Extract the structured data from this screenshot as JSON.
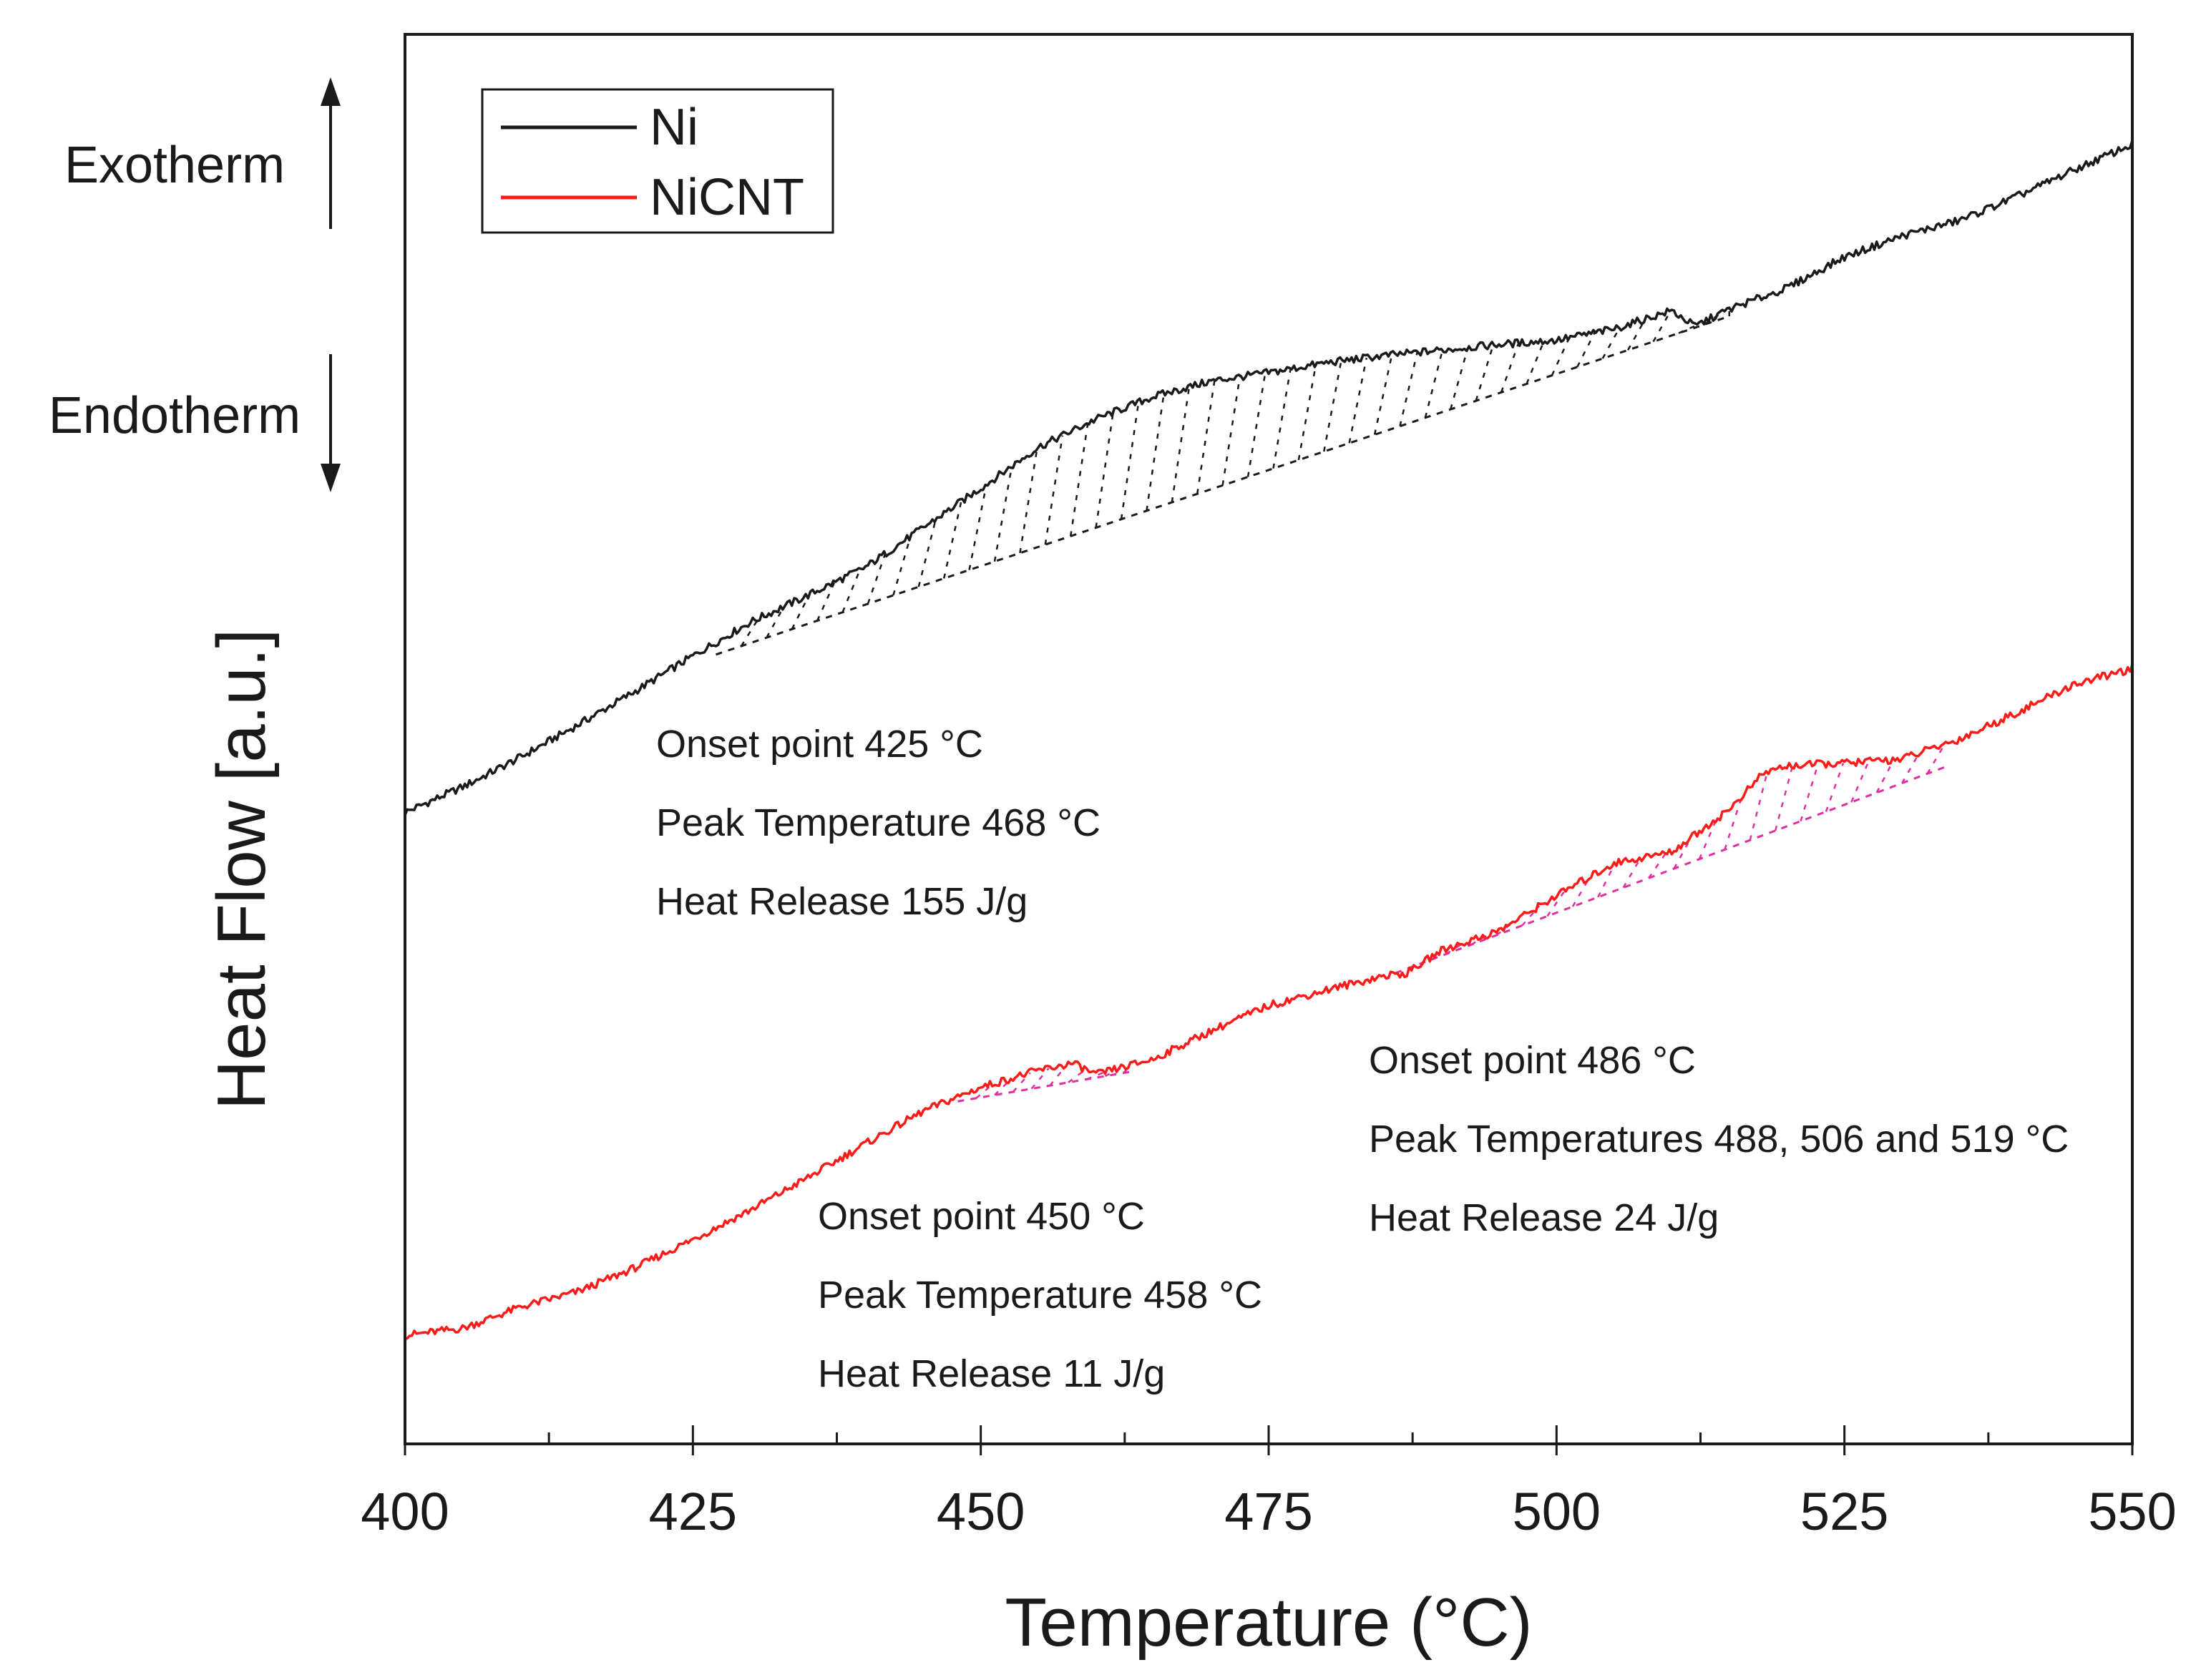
{
  "chart_data": {
    "type": "line",
    "xlabel": "Temperature (°C)",
    "ylabel": "Heat Flow [a.u.]",
    "xlim": [
      400,
      550
    ],
    "ylim": [
      0,
      100
    ],
    "xticks": [
      400,
      425,
      450,
      475,
      500,
      525,
      550
    ],
    "xtick_labels": [
      "400",
      "425",
      "450",
      "475",
      "500",
      "525",
      "550"
    ],
    "legend": {
      "position": "top-left",
      "entries": [
        {
          "name": "Ni",
          "color": "#1a1a1a"
        },
        {
          "name": "NiCNT",
          "color": "#ff1a1a"
        }
      ]
    },
    "side_labels": {
      "exotherm": "Exotherm",
      "endotherm": "Endotherm"
    },
    "series": [
      {
        "name": "Ni",
        "color": "#1a1a1a",
        "x": [
          400,
          405,
          410,
          415,
          420,
          425,
          430,
          435,
          440,
          445,
          450,
          455,
          460,
          465,
          470,
          475,
          480,
          485,
          490,
          495,
          500,
          505,
          510,
          512,
          515,
          520,
          525,
          530,
          535,
          540,
          545,
          550
        ],
        "y": [
          44.8,
          46.6,
          48.7,
          51.0,
          53.4,
          55.9,
          58.3,
          60.2,
          62.2,
          65.0,
          67.8,
          70.7,
          72.7,
          74.3,
          75.4,
          76.0,
          76.7,
          77.2,
          77.6,
          78.0,
          78.3,
          79.1,
          80.4,
          79.3,
          80.5,
          82.0,
          84.2,
          85.7,
          86.8,
          88.5,
          90.4,
          92.2
        ]
      },
      {
        "name": "NiCNT",
        "color": "#ff1a1a",
        "x": [
          400,
          405,
          410,
          415,
          420,
          425,
          430,
          435,
          440,
          445,
          450,
          455,
          458,
          460,
          465,
          470,
          475,
          480,
          485,
          487,
          490,
          495,
          500,
          505,
          510,
          515,
          518,
          520,
          525,
          530,
          535,
          540,
          545,
          550
        ],
        "y": [
          7.7,
          8.2,
          9.7,
          10.8,
          12.5,
          14.5,
          16.6,
          18.9,
          21.3,
          23.6,
          25.3,
          26.5,
          27.0,
          26.2,
          27.3,
          29.3,
          31.1,
          32.2,
          33.2,
          33.4,
          35.0,
          36.4,
          38.9,
          41.2,
          42.0,
          45.0,
          47.6,
          48.1,
          48.3,
          48.6,
          50.0,
          51.9,
          53.9,
          55.0
        ]
      }
    ],
    "baselines": [
      {
        "series": "Ni",
        "x": [
          427,
          515
        ],
        "y": [
          56.0,
          80.0
        ],
        "color": "#1a1a1a"
      },
      {
        "series": "NiCNT",
        "x": [
          448,
          463
        ],
        "y": [
          24.3,
          26.4
        ],
        "color": "#e0309f"
      },
      {
        "series": "NiCNT",
        "x": [
          486,
          534
        ],
        "y": [
          33.4,
          48.1
        ],
        "color": "#e0309f"
      }
    ],
    "annotations": [
      {
        "series": "Ni",
        "lines": [
          "Onset point 425 °C",
          "Peak Temperature 468 °C",
          "Heat Release 155 J/g"
        ]
      },
      {
        "series": "NiCNT",
        "lines": [
          "Onset point 450 °C",
          "Peak Temperature 458 °C",
          "Heat Release 11 J/g"
        ]
      },
      {
        "series": "NiCNT",
        "lines": [
          "Onset point 486 °C",
          "Peak Temperatures 488, 506 and 519 °C",
          "Heat Release 24 J/g"
        ]
      }
    ]
  }
}
